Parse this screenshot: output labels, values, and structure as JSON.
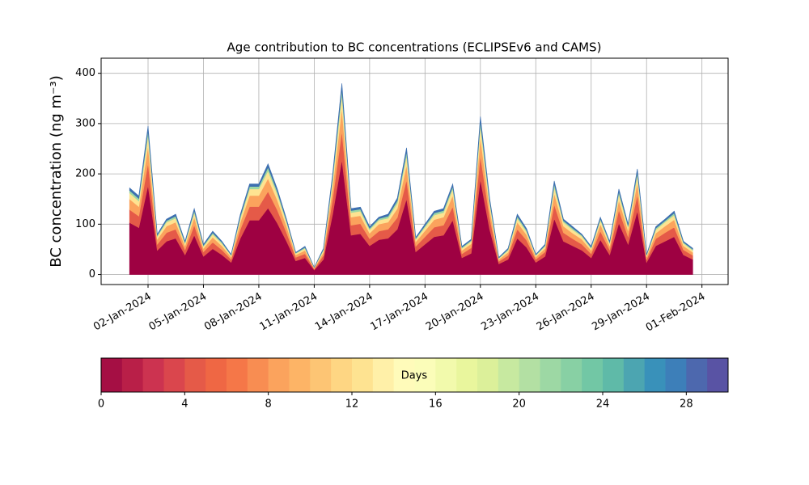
{
  "chart_data": {
    "type": "stacked_area",
    "title": "Age contribution to BC concentrations (ECLIPSEv6 and CAMS)",
    "y_label": "BC concentration (ng m⁻³)",
    "x": [
      "2024-01-01T00:00",
      "2024-01-01T12:00",
      "2024-01-02T00:00",
      "2024-01-02T12:00",
      "2024-01-03T00:00",
      "2024-01-03T12:00",
      "2024-01-04T00:00",
      "2024-01-04T12:00",
      "2024-01-05T00:00",
      "2024-01-05T12:00",
      "2024-01-06T00:00",
      "2024-01-06T12:00",
      "2024-01-07T00:00",
      "2024-01-07T12:00",
      "2024-01-08T00:00",
      "2024-01-08T12:00",
      "2024-01-09T00:00",
      "2024-01-09T12:00",
      "2024-01-10T00:00",
      "2024-01-10T12:00",
      "2024-01-11T00:00",
      "2024-01-11T12:00",
      "2024-01-12T00:00",
      "2024-01-12T12:00",
      "2024-01-13T00:00",
      "2024-01-13T12:00",
      "2024-01-14T00:00",
      "2024-01-14T12:00",
      "2024-01-15T00:00",
      "2024-01-15T12:00",
      "2024-01-16T00:00",
      "2024-01-16T12:00",
      "2024-01-17T00:00",
      "2024-01-17T12:00",
      "2024-01-18T00:00",
      "2024-01-18T12:00",
      "2024-01-19T00:00",
      "2024-01-19T12:00",
      "2024-01-20T00:00",
      "2024-01-20T12:00",
      "2024-01-21T00:00",
      "2024-01-21T12:00",
      "2024-01-22T00:00",
      "2024-01-22T12:00",
      "2024-01-23T00:00",
      "2024-01-23T12:00",
      "2024-01-24T00:00",
      "2024-01-24T12:00",
      "2024-01-25T00:00",
      "2024-01-25T12:00",
      "2024-01-26T00:00",
      "2024-01-26T12:00",
      "2024-01-27T00:00",
      "2024-01-27T12:00",
      "2024-01-28T00:00",
      "2024-01-28T12:00",
      "2024-01-29T00:00",
      "2024-01-29T12:00",
      "2024-01-30T00:00",
      "2024-01-30T12:00",
      "2024-01-31T00:00",
      "2024-01-31T12:00"
    ],
    "series": [
      {
        "color": "#9e0142",
        "values": [
          103,
          93,
          177,
          48,
          66,
          72,
          39,
          78,
          36,
          51,
          39,
          24,
          72,
          108,
          108,
          132,
          102,
          66,
          27,
          33,
          9,
          30,
          120,
          228,
          78,
          81,
          57,
          69,
          72,
          90,
          150,
          45,
          60,
          75,
          78,
          108,
          33,
          42,
          189,
          90,
          21,
          30,
          72,
          54,
          24,
          36,
          111,
          66,
          57,
          48,
          33,
          69,
          39,
          102,
          60,
          126,
          24,
          57,
          66,
          75,
          39,
          30
        ]
      },
      {
        "color": "#e55a48",
        "values": [
          26,
          23,
          44,
          12,
          17,
          18,
          10,
          20,
          9,
          13,
          10,
          6,
          18,
          27,
          27,
          33,
          26,
          17,
          7,
          8,
          2,
          8,
          30,
          57,
          20,
          20,
          14,
          17,
          18,
          23,
          38,
          11,
          15,
          19,
          20,
          27,
          8,
          11,
          47,
          23,
          5,
          8,
          18,
          14,
          6,
          9,
          28,
          17,
          14,
          12,
          8,
          17,
          10,
          26,
          15,
          32,
          6,
          14,
          17,
          19,
          10,
          8
        ]
      },
      {
        "color": "#fba35d",
        "values": [
          21,
          19,
          35,
          10,
          13,
          14,
          8,
          16,
          7,
          10,
          8,
          5,
          14,
          22,
          22,
          26,
          20,
          13,
          5,
          7,
          2,
          6,
          24,
          46,
          16,
          16,
          11,
          14,
          14,
          18,
          30,
          9,
          12,
          15,
          16,
          22,
          7,
          8,
          38,
          18,
          4,
          6,
          14,
          11,
          5,
          7,
          22,
          13,
          11,
          10,
          7,
          14,
          8,
          20,
          12,
          25,
          5,
          11,
          13,
          15,
          8,
          6
        ]
      },
      {
        "color": "#fee391",
        "values": [
          12,
          11,
          21,
          6,
          8,
          8,
          5,
          9,
          4,
          6,
          5,
          3,
          8,
          13,
          13,
          15,
          12,
          8,
          3,
          4,
          1,
          4,
          14,
          27,
          9,
          9,
          7,
          8,
          8,
          11,
          18,
          5,
          7,
          9,
          9,
          13,
          4,
          5,
          22,
          11,
          2,
          4,
          8,
          6,
          3,
          4,
          13,
          8,
          7,
          6,
          4,
          8,
          5,
          12,
          7,
          15,
          3,
          7,
          8,
          9,
          5,
          4
        ]
      },
      {
        "color": "#9dd8a4",
        "values": [
          5,
          5,
          9,
          2,
          3,
          4,
          2,
          4,
          2,
          3,
          2,
          1,
          4,
          5,
          5,
          7,
          5,
          3,
          1,
          2,
          0,
          2,
          6,
          11,
          4,
          4,
          3,
          3,
          4,
          5,
          8,
          2,
          3,
          4,
          4,
          5,
          2,
          2,
          9,
          5,
          1,
          2,
          4,
          3,
          1,
          2,
          6,
          3,
          3,
          2,
          2,
          3,
          2,
          5,
          3,
          6,
          1,
          3,
          3,
          4,
          2,
          2
        ]
      },
      {
        "color": "#3d6fb0",
        "values": [
          5,
          5,
          9,
          2,
          3,
          4,
          2,
          4,
          2,
          3,
          2,
          1,
          4,
          5,
          5,
          7,
          5,
          3,
          1,
          2,
          0,
          2,
          6,
          11,
          4,
          4,
          3,
          3,
          4,
          5,
          8,
          2,
          3,
          4,
          4,
          5,
          2,
          2,
          9,
          5,
          1,
          2,
          4,
          3,
          1,
          2,
          6,
          3,
          3,
          2,
          2,
          3,
          2,
          5,
          3,
          6,
          1,
          3,
          3,
          4,
          2,
          2
        ]
      }
    ],
    "xlim": [
      "2023-12-30T11:00",
      "2024-02-02T10:00"
    ],
    "xticks": [
      {
        "value": "2024-01-02",
        "label": "02-Jan-2024"
      },
      {
        "value": "2024-01-05",
        "label": "05-Jan-2024"
      },
      {
        "value": "2024-01-08",
        "label": "08-Jan-2024"
      },
      {
        "value": "2024-01-11",
        "label": "11-Jan-2024"
      },
      {
        "value": "2024-01-14",
        "label": "14-Jan-2024"
      },
      {
        "value": "2024-01-17",
        "label": "17-Jan-2024"
      },
      {
        "value": "2024-01-20",
        "label": "20-Jan-2024"
      },
      {
        "value": "2024-01-23",
        "label": "23-Jan-2024"
      },
      {
        "value": "2024-01-26",
        "label": "26-Jan-2024"
      },
      {
        "value": "2024-01-29",
        "label": "29-Jan-2024"
      },
      {
        "value": "2024-02-01",
        "label": "01-Feb-2024"
      }
    ],
    "ylim": [
      -20,
      430
    ],
    "yticks": [
      0,
      100,
      200,
      300,
      400
    ],
    "grid": true,
    "colorbar": {
      "label": "Days",
      "lim": [
        0,
        30
      ],
      "ticks": [
        0,
        4,
        8,
        12,
        16,
        20,
        24,
        28
      ],
      "colors": [
        "#a50f44",
        "#b91f48",
        "#cc3350",
        "#da464d",
        "#e55a48",
        "#ef6744",
        "#f57748",
        "#f88d52",
        "#fba35d",
        "#fdb466",
        "#fdc574",
        "#fed683",
        "#fee391",
        "#fff0a8",
        "#fffbba",
        "#fbfdb9",
        "#f2faac",
        "#e9f69d",
        "#dcf09a",
        "#c7e9a0",
        "#b3e0a3",
        "#9dd8a4",
        "#88d0a4",
        "#72c7a5",
        "#5fbaa8",
        "#4ca5b1",
        "#3991ba",
        "#3d7fb9",
        "#4d68ae",
        "#5953a4"
      ]
    }
  }
}
